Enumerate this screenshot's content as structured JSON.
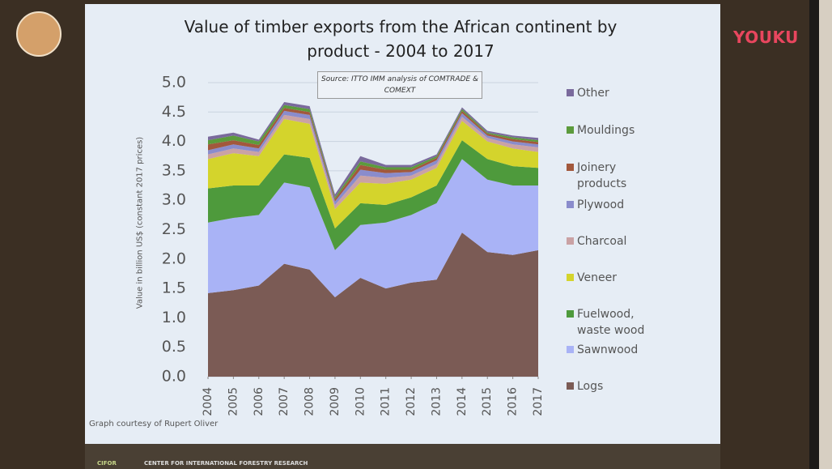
{
  "chart_data": {
    "type": "stacked-area",
    "title": "Value of timber exports from the African continent by product - 2004 to 2017",
    "source_note": "Source: ITTO IMM analysis of COMTRADE & COMEXT",
    "y_label": "Value in billion US$ (constant 2017 prices)",
    "credit": "Graph courtesy of Rupert Oliver",
    "footer": "CENTER FOR INTERNATIONAL FORESTRY RESEARCH",
    "logo": "CIFOR",
    "watermark": "YOUKU",
    "x": [
      2004,
      2005,
      2006,
      2007,
      2008,
      2009,
      2010,
      2011,
      2012,
      2013,
      2014,
      2015,
      2016,
      2017
    ],
    "xlim": [
      2004,
      2017
    ],
    "xticks": [
      2004,
      2005,
      2006,
      2007,
      2008,
      2009,
      2010,
      2011,
      2012,
      2013,
      2014,
      2015,
      2016,
      2017
    ],
    "ylim": [
      0,
      5
    ],
    "yticks": [
      {
        "value": 0,
        "label": "0.0"
      },
      0.5,
      {
        "value": 1,
        "label": "1.0"
      },
      1.5,
      {
        "value": 2,
        "label": "2.0"
      },
      2.5,
      {
        "value": 3,
        "label": "3.0"
      },
      3.5,
      {
        "value": 4,
        "label": "4.0"
      },
      4.5,
      {
        "value": 5,
        "label": "5.0"
      }
    ],
    "grid": true,
    "series": [
      {
        "name": "Logs",
        "color": "#7b5b55",
        "values": [
          1.42,
          1.47,
          1.55,
          1.92,
          1.82,
          1.35,
          1.68,
          1.5,
          1.6,
          1.65,
          2.45,
          2.12,
          2.07,
          2.15
        ]
      },
      {
        "name": "Sawnwood",
        "color": "#a9b3f6",
        "values": [
          1.2,
          1.23,
          1.2,
          1.38,
          1.4,
          0.8,
          0.9,
          1.12,
          1.15,
          1.3,
          1.25,
          1.23,
          1.18,
          1.1
        ]
      },
      {
        "name": "Fuelwood, waste wood",
        "color": "#4e9a3c",
        "values": [
          0.58,
          0.55,
          0.5,
          0.48,
          0.5,
          0.37,
          0.37,
          0.3,
          0.3,
          0.3,
          0.32,
          0.35,
          0.33,
          0.3
        ]
      },
      {
        "name": "Veneer",
        "color": "#d4d42c",
        "values": [
          0.5,
          0.55,
          0.5,
          0.6,
          0.58,
          0.33,
          0.35,
          0.36,
          0.3,
          0.3,
          0.33,
          0.3,
          0.3,
          0.27
        ]
      },
      {
        "name": "Charcoal",
        "color": "#caa2a4",
        "values": [
          0.08,
          0.08,
          0.07,
          0.07,
          0.08,
          0.07,
          0.12,
          0.1,
          0.07,
          0.07,
          0.07,
          0.06,
          0.07,
          0.08
        ]
      },
      {
        "name": "Plywood",
        "color": "#8a8ccc",
        "values": [
          0.07,
          0.07,
          0.06,
          0.07,
          0.07,
          0.06,
          0.1,
          0.08,
          0.06,
          0.06,
          0.06,
          0.04,
          0.05,
          0.05
        ]
      },
      {
        "name": "Joinery products",
        "color": "#a2583c",
        "values": [
          0.1,
          0.07,
          0.06,
          0.05,
          0.05,
          0.04,
          0.08,
          0.06,
          0.04,
          0.04,
          0.04,
          0.03,
          0.04,
          0.04
        ]
      },
      {
        "name": "Mouldings",
        "color": "#5c9b3c",
        "values": [
          0.07,
          0.08,
          0.06,
          0.05,
          0.05,
          0.03,
          0.06,
          0.04,
          0.04,
          0.03,
          0.03,
          0.02,
          0.03,
          0.03
        ]
      },
      {
        "name": "Other",
        "color": "#7a6a9c",
        "values": [
          0.06,
          0.05,
          0.03,
          0.05,
          0.05,
          0.05,
          0.09,
          0.04,
          0.04,
          0.03,
          0.03,
          0.03,
          0.03,
          0.04
        ]
      }
    ]
  }
}
